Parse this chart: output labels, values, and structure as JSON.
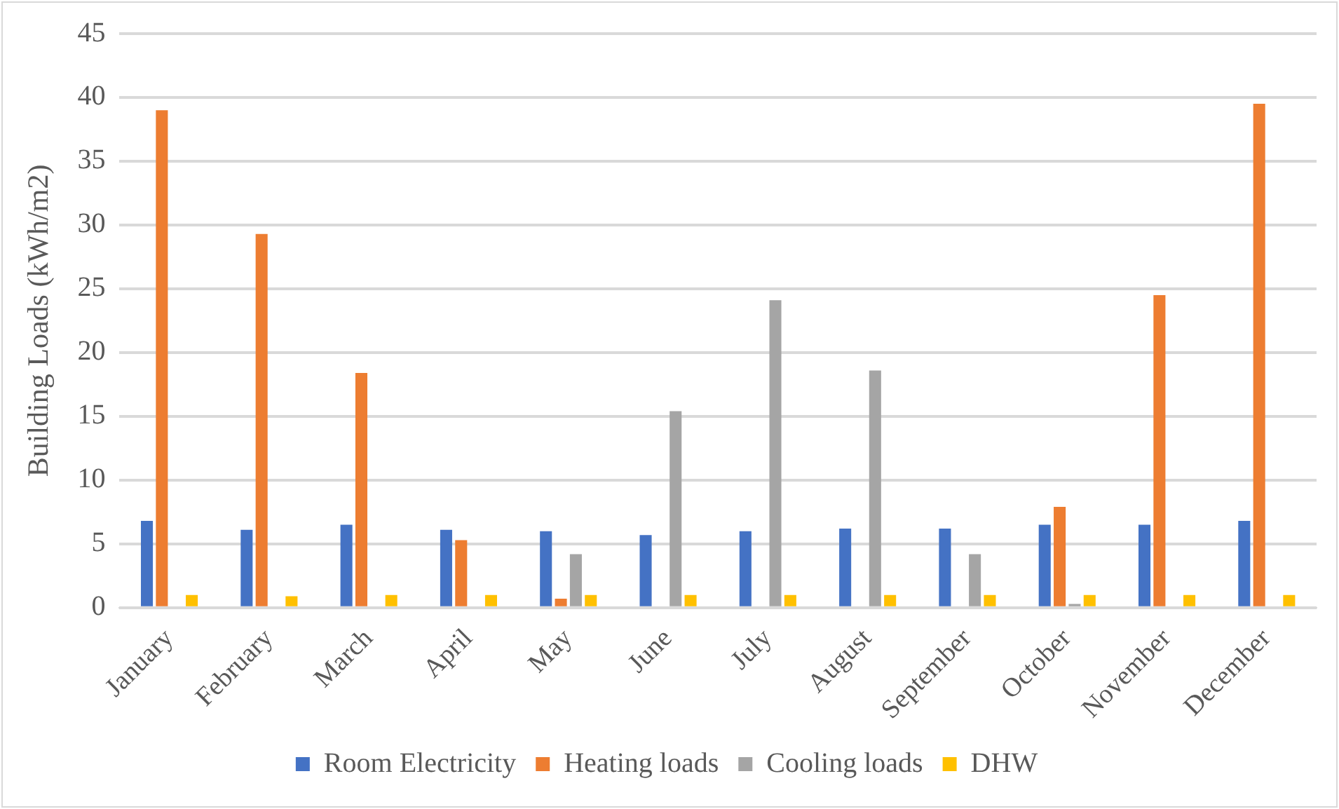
{
  "chart_data": {
    "type": "bar",
    "ylabel": "Building Loads (kWh/m2)",
    "categories": [
      "January",
      "February",
      "March",
      "April",
      "May",
      "June",
      "July",
      "August",
      "September",
      "October",
      "November",
      "December"
    ],
    "series": [
      {
        "name": "Room Electricity",
        "color": "#4472c4",
        "values": [
          6.8,
          6.1,
          6.5,
          6.1,
          6.0,
          5.7,
          6.0,
          6.2,
          6.2,
          6.5,
          6.5,
          6.8
        ]
      },
      {
        "name": "Heating loads",
        "color": "#ed7d31",
        "values": [
          39.0,
          29.3,
          18.4,
          5.3,
          0.7,
          0,
          0,
          0,
          0,
          7.9,
          24.5,
          39.5
        ]
      },
      {
        "name": "Cooling loads",
        "color": "#a5a5a5",
        "values": [
          0,
          0,
          0,
          0,
          4.2,
          15.4,
          24.1,
          18.6,
          4.2,
          0.3,
          0,
          0
        ]
      },
      {
        "name": "DHW",
        "color": "#ffc000",
        "values": [
          1.0,
          0.9,
          1.0,
          1.0,
          1.0,
          1.0,
          1.0,
          1.0,
          1.0,
          1.0,
          1.0,
          1.0
        ]
      }
    ],
    "ylim": [
      0,
      45
    ],
    "yticks": [
      0,
      5,
      10,
      15,
      20,
      25,
      30,
      35,
      40,
      45
    ],
    "grid": "y",
    "legend": "bottom"
  }
}
